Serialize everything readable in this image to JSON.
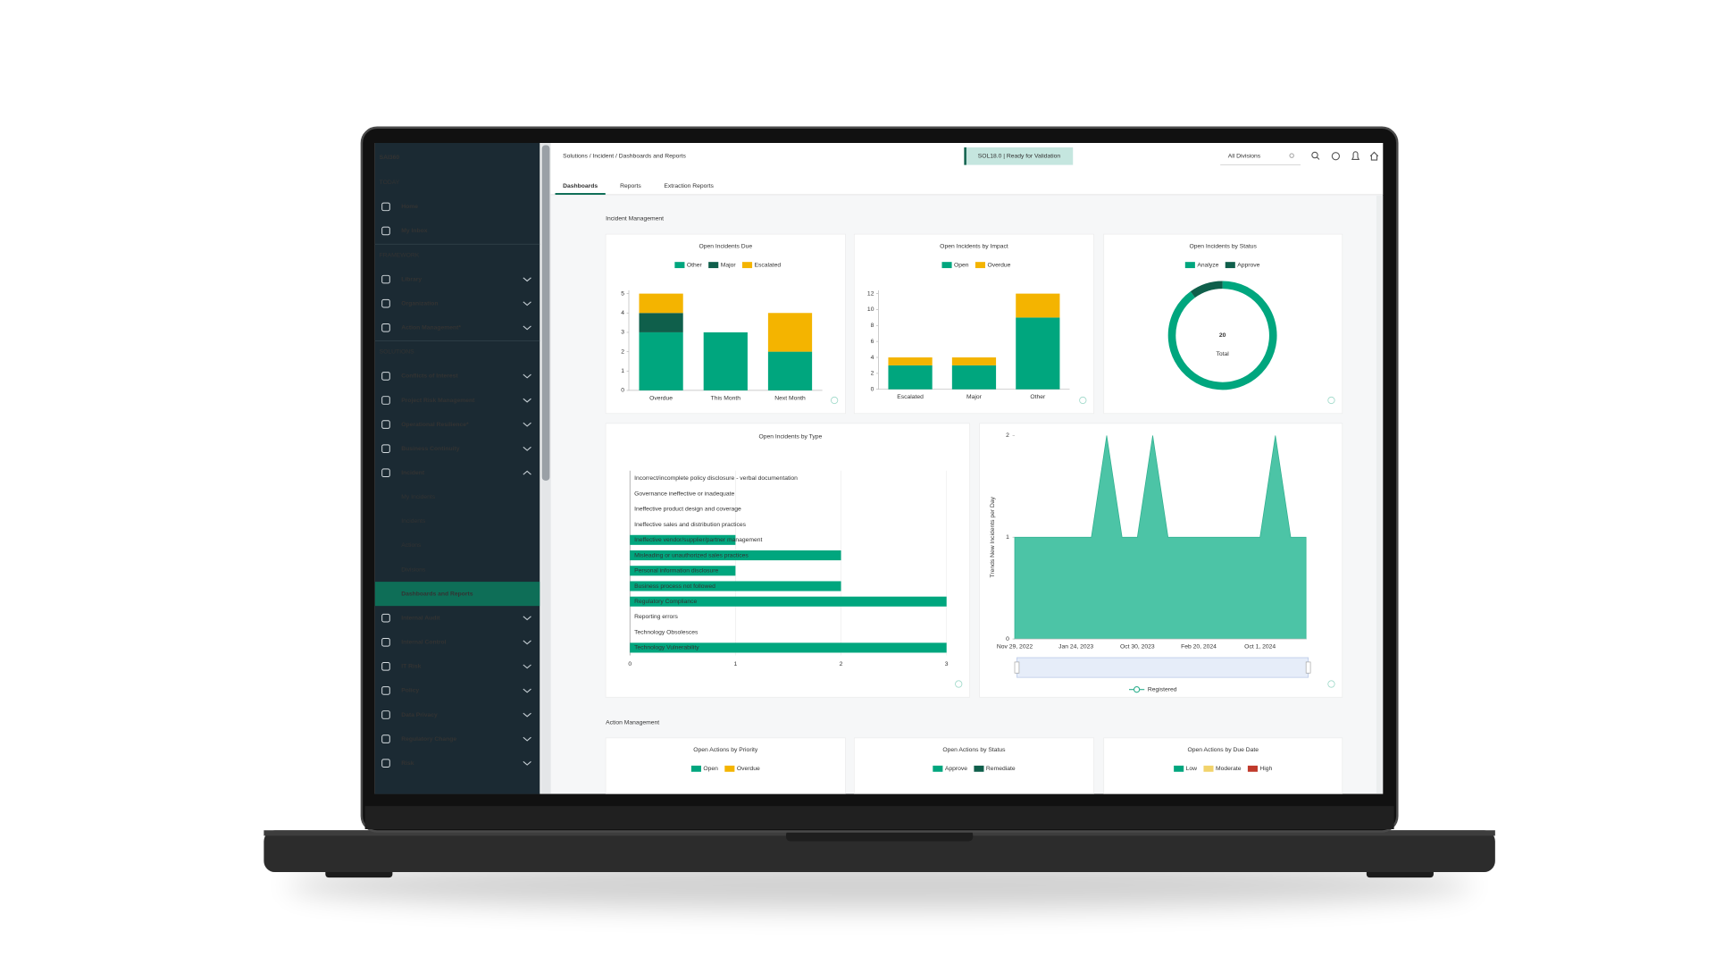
{
  "sidebar": {
    "logo": "SAI360",
    "rows": [
      {
        "section": "TODAY"
      },
      {
        "label": "Home"
      },
      {
        "label": "My Inbox"
      },
      {
        "section": "FRAMEWORK"
      },
      {
        "label": "Library",
        "chevron": "down"
      },
      {
        "label": "Organization",
        "chevron": "down"
      },
      {
        "label": "Action Management*",
        "chevron": "down"
      },
      {
        "section": "SOLUTIONS"
      },
      {
        "label": "Conflicts of Interest",
        "chevron": "down"
      },
      {
        "label": "Project Risk Management",
        "chevron": "down"
      },
      {
        "label": "Operational Resilience*",
        "chevron": "down"
      },
      {
        "label": "Business Continuity",
        "chevron": "down"
      },
      {
        "label": "Incident",
        "chevron": "up"
      },
      {
        "sub": "My Incidents"
      },
      {
        "sub": "Incidents"
      },
      {
        "sub": "Actions"
      },
      {
        "sub": "Divisions"
      },
      {
        "sub": "Dashboards and Reports",
        "active": true
      },
      {
        "label": "Internal Audit",
        "chevron": "down"
      },
      {
        "label": "Internal Control",
        "chevron": "down"
      },
      {
        "label": "IT Risk",
        "chevron": "down"
      },
      {
        "label": "Policy",
        "chevron": "down"
      },
      {
        "label": "Data Privacy",
        "chevron": "down"
      },
      {
        "label": "Regulatory Change",
        "chevron": "down"
      },
      {
        "label": "Risk",
        "chevron": "down"
      }
    ]
  },
  "header": {
    "breadcrumb": "Solutions / Incident / Dashboards and Reports",
    "badge": "SOL18.0 | Ready for Validation",
    "division_filter": "All Divisions"
  },
  "tabs": [
    {
      "label": "Dashboards",
      "active": true
    },
    {
      "label": "Reports"
    },
    {
      "label": "Extraction Reports"
    }
  ],
  "sections": [
    {
      "title": "Incident Management"
    },
    {
      "title": "Action Management"
    }
  ],
  "charts": [
    {
      "type": "stacked-bar",
      "title": "Open Incidents Due",
      "categories": [
        "Overdue",
        "This Month",
        "Next Month"
      ],
      "series": [
        {
          "name": "Other",
          "color": "#00a67e",
          "values": [
            3,
            3,
            2
          ]
        },
        {
          "name": "Major",
          "color": "#0f5f4b",
          "values": [
            1,
            0,
            0
          ]
        },
        {
          "name": "Escalated",
          "color": "#f4b400",
          "values": [
            1,
            0,
            2
          ]
        }
      ],
      "ylim": [
        0,
        5
      ],
      "yticks": [
        0,
        1,
        2,
        3,
        4,
        5
      ]
    },
    {
      "type": "stacked-bar",
      "title": "Open Incidents by Impact",
      "categories": [
        "Escalated",
        "Major",
        "Other"
      ],
      "series": [
        {
          "name": "Open",
          "color": "#00a67e",
          "values": [
            3,
            3,
            9
          ]
        },
        {
          "name": "Overdue",
          "color": "#f4b400",
          "values": [
            1,
            1,
            3
          ]
        }
      ],
      "ylim": [
        0,
        12
      ],
      "yticks": [
        0,
        2,
        4,
        6,
        8,
        10,
        12
      ]
    },
    {
      "type": "donut",
      "title": "Open Incidents by Status",
      "series": [
        {
          "name": "Analyze",
          "color": "#00a67e",
          "values": [
            18
          ]
        },
        {
          "name": "Approve",
          "color": "#0f5f4b",
          "values": [
            2
          ]
        }
      ],
      "total": 20,
      "total_label": "Total"
    },
    {
      "type": "hbar",
      "title": "Open Incidents by Type",
      "color": "#00a67e",
      "categories": [
        "Incorrect/incomplete policy disclosure - verbal documentation",
        "Governance ineffective or inadequate",
        "Ineffective product design and coverage",
        "Ineffective sales and distribution practices",
        "Ineffective vendor/supplier/partner management",
        "Misleading or unauthorized sales practices",
        "Personal information disclosure",
        "Business process not followed",
        "Regulatory Compliance",
        "Reporting errors",
        "Technology Obsolesces",
        "Technology Vulnerability"
      ],
      "values": [
        0,
        0,
        0,
        0,
        1,
        2,
        1,
        2,
        3,
        0,
        0,
        3
      ],
      "xlim": [
        0,
        3
      ],
      "xticks": [
        0,
        1,
        2,
        3
      ],
      "grid": true
    },
    {
      "type": "area",
      "ylabel": "Trends New Incidents per Day",
      "categories": [
        "Nov 29, 2022",
        null,
        null,
        null,
        "Jan 24, 2023",
        null,
        null,
        null,
        "Oct 30, 2023",
        null,
        null,
        null,
        "Feb 20, 2024",
        null,
        null,
        null,
        "Oct 1, 2024",
        null,
        null,
        null
      ],
      "series": [
        {
          "name": "Registered",
          "color": "#4cc4a6",
          "values": [
            1,
            1,
            1,
            1,
            1,
            1,
            2,
            1,
            1,
            2,
            1,
            1,
            1,
            1,
            1,
            1,
            1,
            2,
            1,
            1
          ]
        }
      ],
      "ylim": [
        0,
        2
      ],
      "yticks": [
        0,
        1,
        2
      ],
      "legend": "bottom"
    },
    {
      "title": "Open Actions by Priority",
      "series": [
        {
          "name": "Open",
          "color": "#00a67e"
        },
        {
          "name": "Overdue",
          "color": "#f4b400"
        }
      ]
    },
    {
      "title": "Open Actions by Status",
      "series": [
        {
          "name": "Approve",
          "color": "#00a67e"
        },
        {
          "name": "Remediate",
          "color": "#0f5f4b"
        }
      ]
    },
    {
      "title": "Open Actions by Due Date",
      "series": [
        {
          "name": "Low",
          "color": "#00a67e"
        },
        {
          "name": "Moderate",
          "color": "#f2d36b"
        },
        {
          "name": "High",
          "color": "#c0392b"
        }
      ]
    }
  ]
}
